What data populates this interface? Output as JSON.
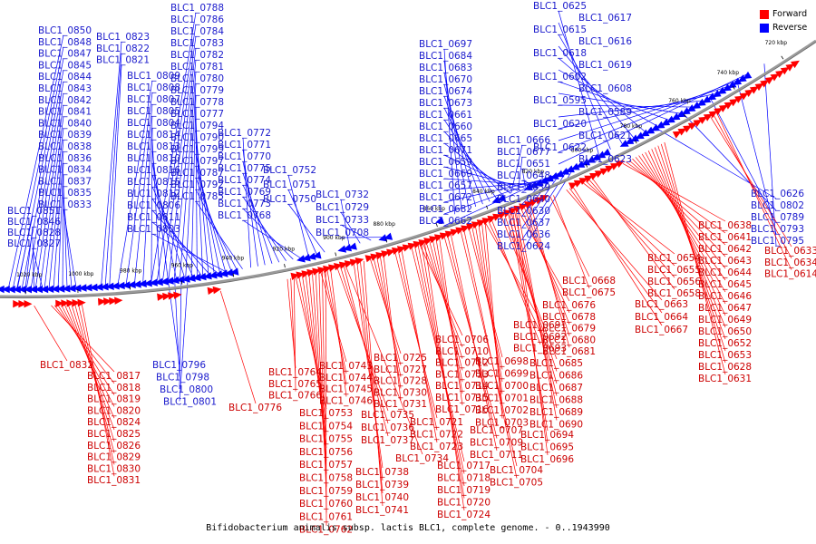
{
  "caption": "Bifidobacterium animalis subsp. lactis BLC1, complete genome. - 0..1943990",
  "legend": [
    {
      "label": "Forward",
      "color": "#ff0000"
    },
    {
      "label": "Reverse",
      "color": "#0000ff"
    }
  ],
  "colors": {
    "forward": "#ff0000",
    "reverse": "#0000ff",
    "forward_text": "#cc0000",
    "reverse_text": "#1a1acc",
    "backbone": "#999999"
  },
  "ticks": [
    "1020 kbp",
    "1000 kbp",
    "980 kbp",
    "960 kbp",
    "940 kbp",
    "920 kbp",
    "900 kbp",
    "880 kbp",
    "860 kbp",
    "840 kbp",
    "820 kbp",
    "800 kbp",
    "780 kbp",
    "760 kbp",
    "740 kbp",
    "720 kbp"
  ],
  "reverse_labels": [
    "BLC1_0850",
    "BLC1_0848",
    "BLC1_0847",
    "BLC1_0845",
    "BLC1_0844",
    "BLC1_0843",
    "BLC1_0842",
    "BLC1_0841",
    "BLC1_0840",
    "BLC1_0839",
    "BLC1_0838",
    "BLC1_0836",
    "BLC1_0834",
    "BLC1_0837",
    "BLC1_0835",
    "BLC1_0833",
    "BLC1_0851",
    "BLC1_0846",
    "BLC1_0828",
    "BLC1_0827",
    "BLC1_0823",
    "BLC1_0822",
    "BLC1_0821",
    "BLC1_0809",
    "BLC1_0808",
    "BLC1_0807",
    "BLC1_0805",
    "BLC1_0804",
    "BLC1_0814",
    "BLC1_0813",
    "BLC1_0810",
    "BLC1_0816",
    "BLC1_0815",
    "BLC1_0812",
    "BLC1_0806",
    "BLC1_0811",
    "BLC1_0803",
    "BLC1_0788",
    "BLC1_0786",
    "BLC1_0784",
    "BLC1_0783",
    "BLC1_0782",
    "BLC1_0781",
    "BLC1_0780",
    "BLC1_0779",
    "BLC1_0778",
    "BLC1_0777",
    "BLC1_0794",
    "BLC1_0790",
    "BLC1_0799",
    "BLC1_0797",
    "BLC1_0787",
    "BLC1_0792",
    "BLC1_0785",
    "BLC1_0772",
    "BLC1_0771",
    "BLC1_0770",
    "BLC1_0775",
    "BLC1_0774",
    "BLC1_0769",
    "BLC1_0773",
    "BLC1_0768",
    "BLC1_0752",
    "BLC1_0751",
    "BLC1_0750",
    "BLC1_0732",
    "BLC1_0729",
    "BLC1_0733",
    "BLC1_0708",
    "BLC1_0697",
    "BLC1_0684",
    "BLC1_0683",
    "BLC1_0670",
    "BLC1_0674",
    "BLC1_0673",
    "BLC1_0661",
    "BLC1_0660",
    "BLC1_0665",
    "BLC1_0671",
    "BLC1_0659",
    "BLC1_0669",
    "BLC1_0657",
    "BLC1_0672",
    "BLC1_0682",
    "BLC1_0662",
    "BLC1_0666",
    "BLC1_0677",
    "BLC1_0651",
    "BLC1_0648",
    "BLC1_0639",
    "BLC1_0640",
    "BLC1_0630",
    "BLC1_0637",
    "BLC1_0636",
    "BLC1_0624",
    "BLC1_0625",
    "BLC1_0617",
    "BLC1_0615",
    "BLC1_0616",
    "BLC1_0618",
    "BLC1_0619",
    "BLC1_0602",
    "BLC1_0608",
    "BLC1_0595",
    "BLC1_0589",
    "BLC1_0620",
    "BLC1_0621",
    "BLC1_0622",
    "BLC1_0623",
    "BLC1_0626",
    "BLC1_0802",
    "BLC1_0789",
    "BLC1_0793",
    "BLC1_0795",
    "BLC1_0796",
    "BLC1_0798",
    "BLC1_0800",
    "BLC1_0801"
  ],
  "forward_labels": [
    "BLC1_0832",
    "BLC1_0817",
    "BLC1_0818",
    "BLC1_0819",
    "BLC1_0820",
    "BLC1_0824",
    "BLC1_0825",
    "BLC1_0826",
    "BLC1_0829",
    "BLC1_0830",
    "BLC1_0831",
    "BLC1_0776",
    "BLC1_0764",
    "BLC1_0765",
    "BLC1_0766",
    "BLC1_0753",
    "BLC1_0754",
    "BLC1_0755",
    "BLC1_0756",
    "BLC1_0757",
    "BLC1_0758",
    "BLC1_0759",
    "BLC1_0760",
    "BLC1_0761",
    "BLC1_0762",
    "BLC1_0743",
    "BLC1_0744",
    "BLC1_0745",
    "BLC1_0746",
    "BLC1_0735",
    "BLC1_0736",
    "BLC1_0737",
    "BLC1_0734",
    "BLC1_0738",
    "BLC1_0739",
    "BLC1_0740",
    "BLC1_0741",
    "BLC1_0725",
    "BLC1_0727",
    "BLC1_0728",
    "BLC1_0730",
    "BLC1_0731",
    "BLC1_0721",
    "BLC1_0722",
    "BLC1_0723",
    "BLC1_0717",
    "BLC1_0718",
    "BLC1_0719",
    "BLC1_0720",
    "BLC1_0724",
    "BLC1_0706",
    "BLC1_0710",
    "BLC1_0712",
    "BLC1_0713",
    "BLC1_0714",
    "BLC1_0715",
    "BLC1_0716",
    "BLC1_0707",
    "BLC1_0709",
    "BLC1_0711",
    "BLC1_0704",
    "BLC1_0705",
    "BLC1_0698",
    "BLC1_0699",
    "BLC1_0700",
    "BLC1_0701",
    "BLC1_0702",
    "BLC1_0703",
    "BLC1_0691",
    "BLC1_0692",
    "BLC1_0693",
    "BLC1_0685",
    "BLC1_0686",
    "BLC1_0687",
    "BLC1_0688",
    "BLC1_0689",
    "BLC1_0690",
    "BLC1_0694",
    "BLC1_0695",
    "BLC1_0696",
    "BLC1_0676",
    "BLC1_0678",
    "BLC1_0679",
    "BLC1_0680",
    "BLC1_0681",
    "BLC1_0668",
    "BLC1_0675",
    "BLC1_0663",
    "BLC1_0664",
    "BLC1_0667",
    "BLC1_0654",
    "BLC1_0655",
    "BLC1_0656",
    "BLC1_0658",
    "BLC1_0638",
    "BLC1_0641",
    "BLC1_0642",
    "BLC1_0643",
    "BLC1_0644",
    "BLC1_0645",
    "BLC1_0646",
    "BLC1_0647",
    "BLC1_0649",
    "BLC1_0650",
    "BLC1_0652",
    "BLC1_0653",
    "BLC1_0628",
    "BLC1_0631",
    "BLC1_0633",
    "BLC1_0634",
    "BLC1_0614"
  ]
}
